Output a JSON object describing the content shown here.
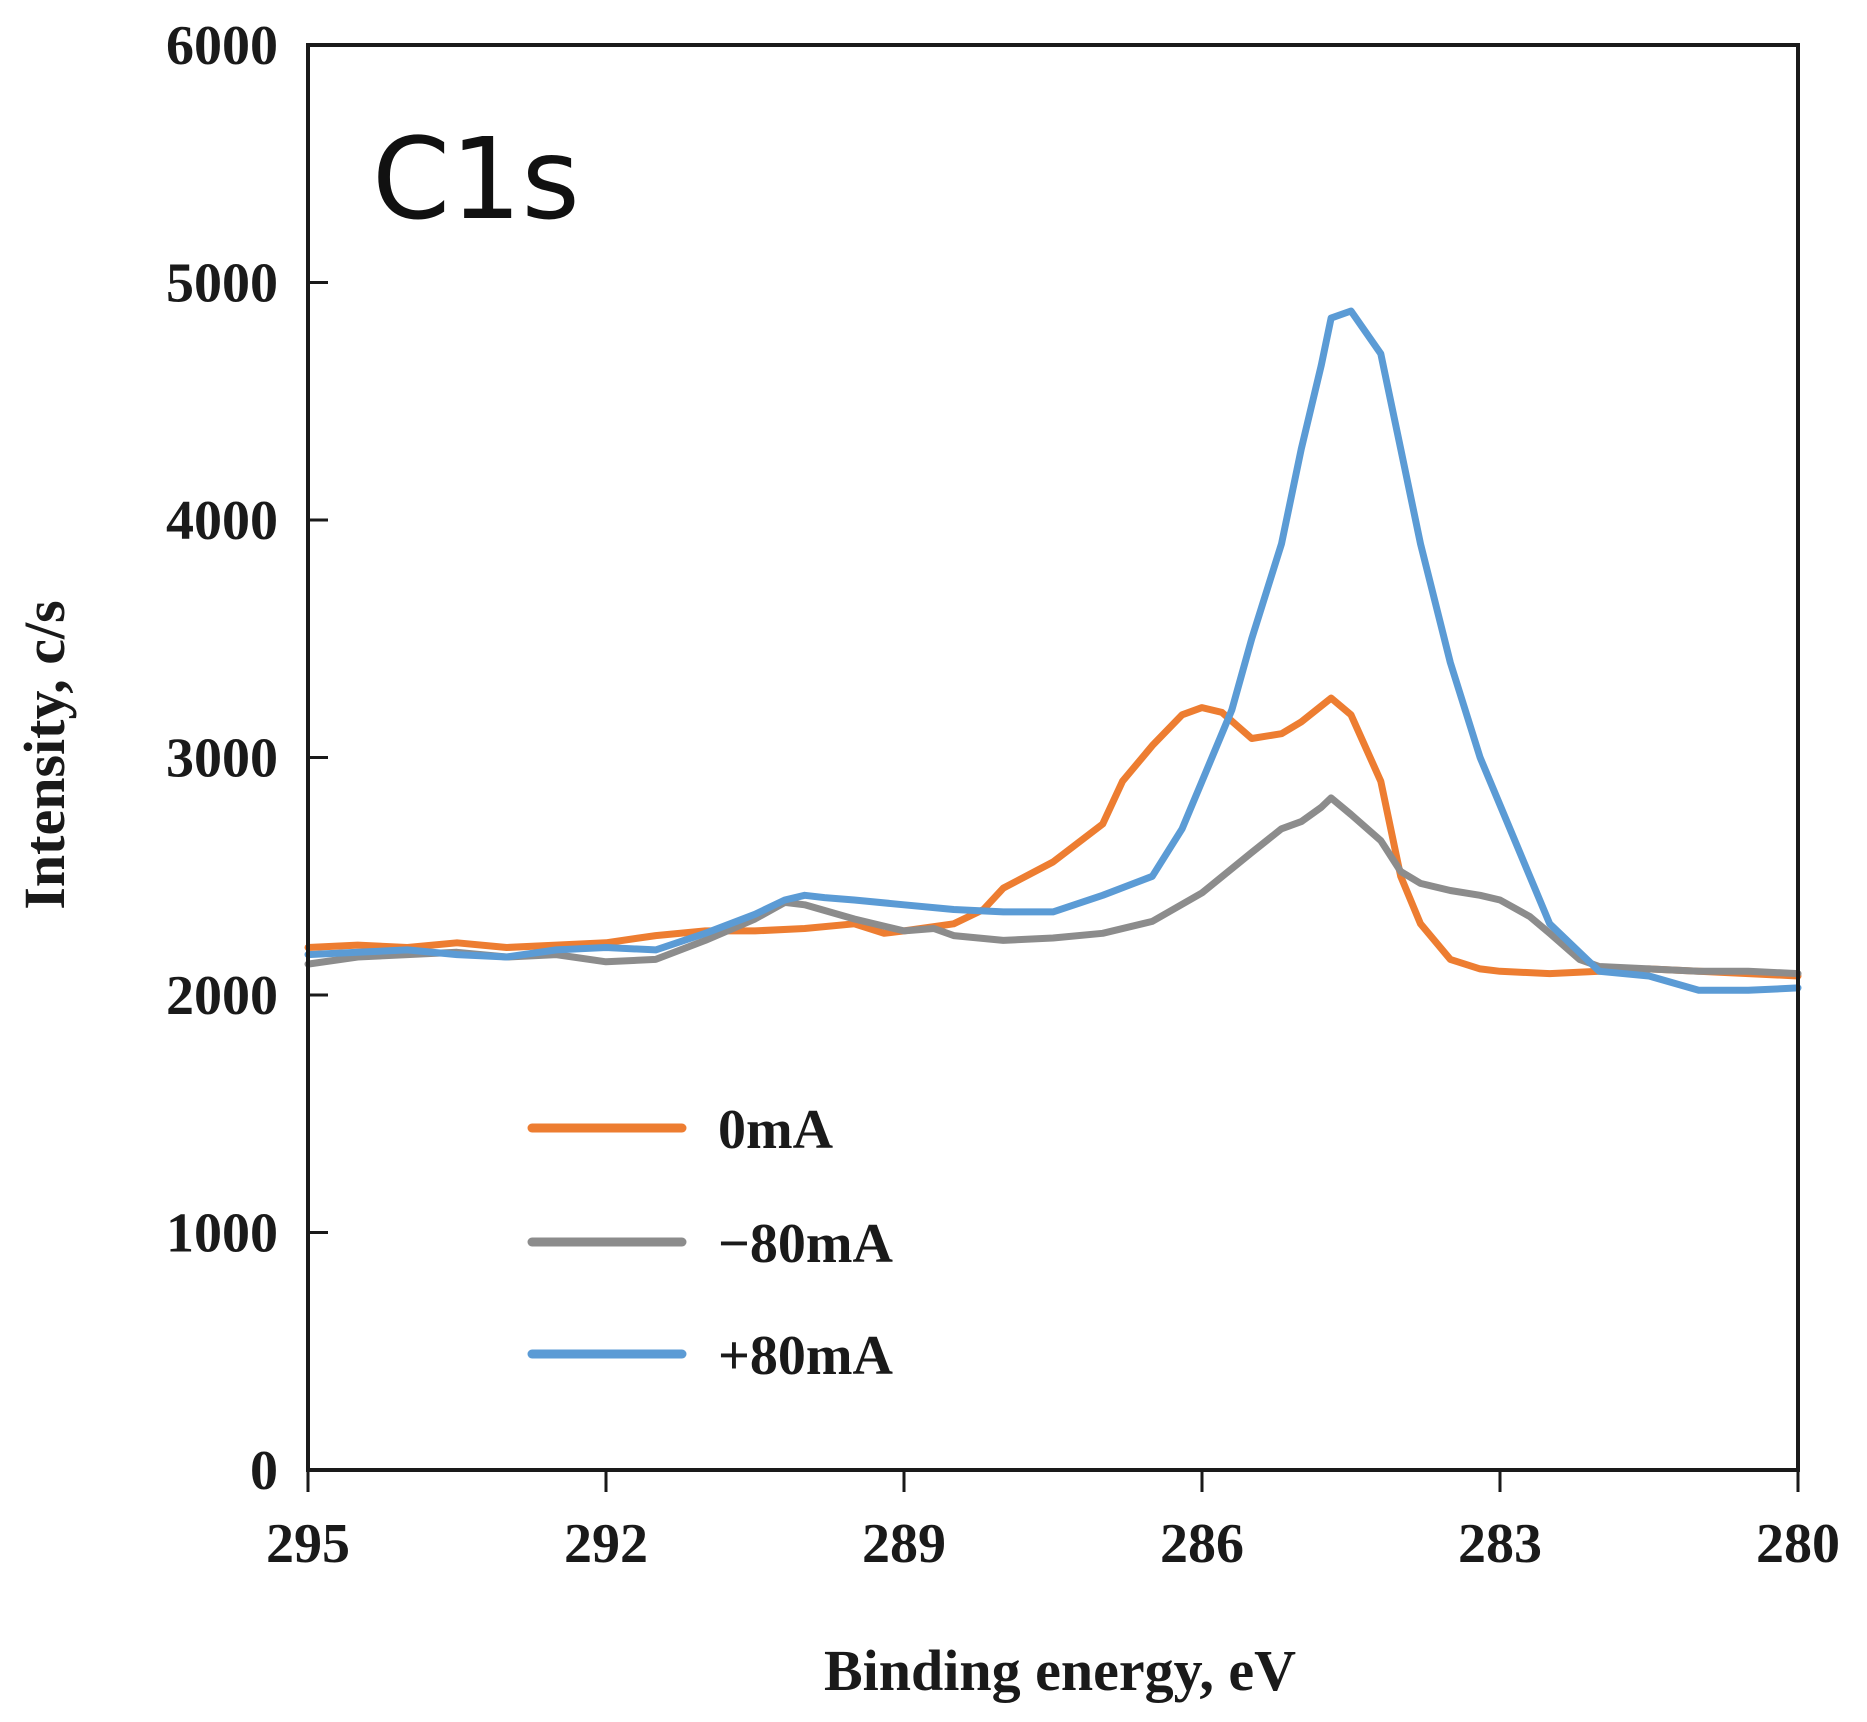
{
  "chart_data": {
    "type": "line",
    "panel_label": "C1s",
    "xlabel": "Binding energy, eV",
    "ylabel": "Intensity, c/s",
    "xlim": [
      295,
      280
    ],
    "ylim": [
      0,
      6000
    ],
    "x_ticks": [
      295,
      292,
      289,
      286,
      283,
      280
    ],
    "y_ticks": [
      0,
      1000,
      2000,
      3000,
      4000,
      5000,
      6000
    ],
    "x_tick_labels": [
      "295",
      "292",
      "289",
      "286",
      "283",
      "280"
    ],
    "y_tick_labels": [
      "0",
      "1000",
      "2000",
      "3000",
      "4000",
      "5000",
      "6000"
    ],
    "grid": false,
    "legend_position": "lower-left",
    "series": [
      {
        "name": "0mA",
        "color": "#ED7D31",
        "x": [
          295,
          294.5,
          294,
          293.5,
          293,
          292.5,
          292,
          291.5,
          291,
          290.5,
          290,
          289.5,
          289.2,
          289,
          288.5,
          288.2,
          288,
          287.5,
          287,
          286.8,
          286.5,
          286.2,
          286,
          285.8,
          285.5,
          285.2,
          285,
          284.7,
          284.5,
          284.2,
          284,
          283.8,
          283.5,
          283.2,
          283,
          282.5,
          282,
          281.5,
          281,
          280.5,
          280
        ],
        "y": [
          2200,
          2210,
          2200,
          2220,
          2200,
          2210,
          2220,
          2250,
          2270,
          2270,
          2280,
          2300,
          2260,
          2270,
          2300,
          2360,
          2450,
          2560,
          2720,
          2900,
          3050,
          3180,
          3210,
          3190,
          3080,
          3100,
          3150,
          3250,
          3180,
          2900,
          2500,
          2300,
          2150,
          2110,
          2100,
          2090,
          2100,
          2110,
          2100,
          2090,
          2080
        ]
      },
      {
        "name": "−80mA",
        "color": "#8C8C8C",
        "x": [
          295,
          294.5,
          294,
          293.5,
          293,
          292.5,
          292,
          291.5,
          291,
          290.5,
          290.2,
          290,
          289.5,
          289,
          288.7,
          288.5,
          288,
          287.5,
          287,
          286.5,
          286,
          285.5,
          285.2,
          285,
          284.8,
          284.7,
          284.5,
          284.2,
          284,
          283.8,
          283.5,
          283.2,
          283,
          282.7,
          282.5,
          282.2,
          282,
          281.5,
          281,
          280.5,
          280
        ],
        "y": [
          2130,
          2160,
          2170,
          2180,
          2160,
          2170,
          2140,
          2150,
          2230,
          2320,
          2390,
          2380,
          2320,
          2270,
          2280,
          2250,
          2230,
          2240,
          2260,
          2310,
          2430,
          2600,
          2700,
          2730,
          2790,
          2830,
          2760,
          2650,
          2520,
          2470,
          2440,
          2420,
          2400,
          2330,
          2260,
          2150,
          2120,
          2110,
          2100,
          2100,
          2090
        ]
      },
      {
        "name": "+80mA",
        "color": "#5B9BD5",
        "x": [
          295,
          294.5,
          294,
          293.5,
          293,
          292.5,
          292,
          291.5,
          291,
          290.5,
          290.2,
          290,
          289.8,
          289.5,
          289,
          288.5,
          288,
          287.5,
          287,
          286.5,
          286.2,
          286,
          285.7,
          285.5,
          285.2,
          285,
          284.8,
          284.7,
          284.5,
          284.2,
          284,
          283.8,
          283.5,
          283.2,
          283,
          282.7,
          282.5,
          282,
          281.5,
          281,
          280.5,
          280
        ],
        "y": [
          2170,
          2180,
          2190,
          2170,
          2160,
          2190,
          2200,
          2190,
          2260,
          2340,
          2400,
          2420,
          2410,
          2400,
          2380,
          2360,
          2350,
          2350,
          2420,
          2500,
          2700,
          2900,
          3200,
          3500,
          3900,
          4300,
          4650,
          4850,
          4880,
          4700,
          4300,
          3900,
          3400,
          3000,
          2800,
          2500,
          2300,
          2100,
          2080,
          2020,
          2020,
          2030
        ]
      }
    ]
  }
}
